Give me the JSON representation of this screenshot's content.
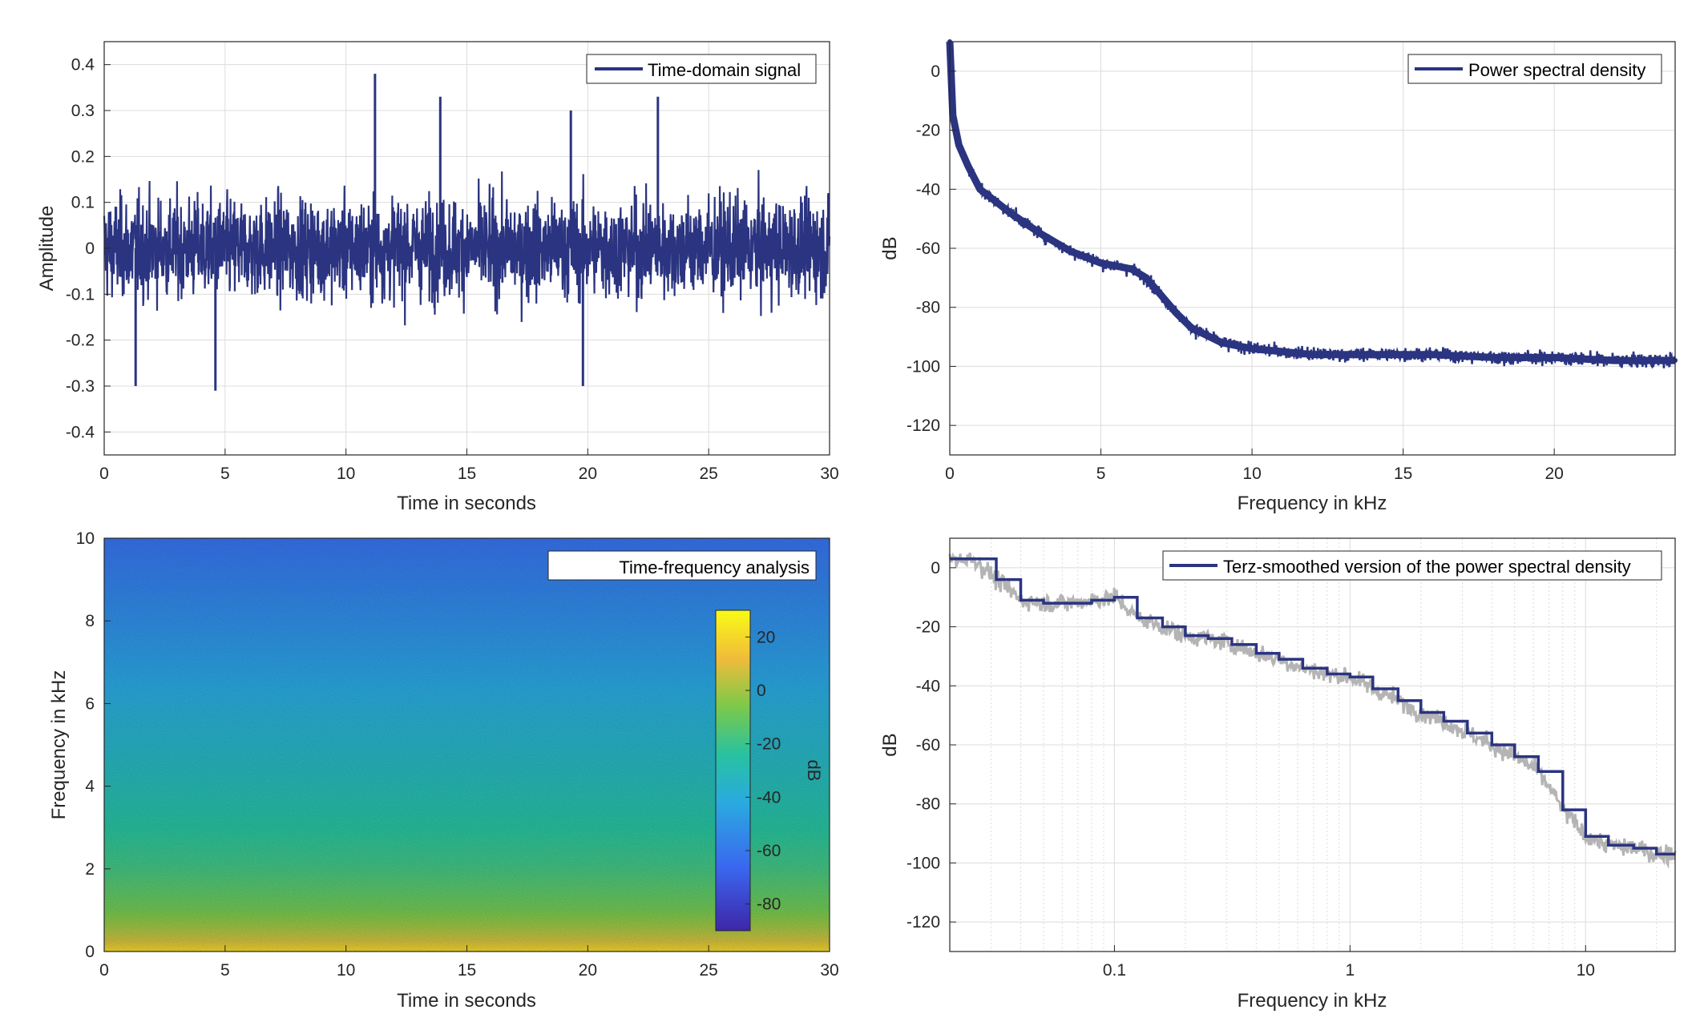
{
  "colors": {
    "series": "#2b3480",
    "grid": "#dcdcdc",
    "axis": "#262626",
    "raw": "#b4b4b4"
  },
  "chart_data": [
    {
      "type": "line",
      "legend": "Time-domain signal",
      "legend_position": "top-right",
      "xlabel": "Time in seconds",
      "ylabel": "Amplitude",
      "xlim": [
        0,
        30
      ],
      "ylim": [
        -0.45,
        0.45
      ],
      "xticks": [
        0,
        5,
        10,
        15,
        20,
        25,
        30
      ],
      "xtick_labels": [
        "0",
        "5",
        "10",
        "15",
        "20",
        "25",
        "30"
      ],
      "yticks": [
        -0.4,
        -0.3,
        -0.2,
        -0.1,
        0,
        0.1,
        0.2,
        0.3,
        0.4
      ],
      "ytick_labels": [
        "-0.4",
        "-0.3",
        "-0.2",
        "-0.1",
        "0",
        "0.1",
        "0.2",
        "0.3",
        "0.4"
      ],
      "grid": true,
      "series": [
        {
          "envelope_typical": [
            -0.12,
            0.12
          ],
          "peaks": [
            [
              11.2,
              0.38
            ],
            [
              4.6,
              -0.31
            ],
            [
              1.3,
              -0.3
            ],
            [
              19.8,
              -0.3
            ],
            [
              13.9,
              0.33
            ],
            [
              22.9,
              0.33
            ],
            [
              19.3,
              0.3
            ]
          ]
        }
      ]
    },
    {
      "type": "line",
      "legend": "Power spectral density",
      "legend_position": "top-right",
      "xlabel": "Frequency in kHz",
      "ylabel": "dB",
      "xlim": [
        0,
        24
      ],
      "ylim": [
        -130,
        10
      ],
      "xticks": [
        0,
        5,
        10,
        15,
        20
      ],
      "xtick_labels": [
        "0",
        "5",
        "10",
        "15",
        "20"
      ],
      "yticks": [
        -120,
        -100,
        -80,
        -60,
        -40,
        -20,
        0
      ],
      "ytick_labels": [
        "-120",
        "-100",
        "-80",
        "-60",
        "-40",
        "-20",
        "0"
      ],
      "grid": true,
      "series": [
        {
          "x": [
            0,
            0.1,
            0.3,
            0.6,
            1,
            1.5,
            2,
            3,
            4,
            5,
            6,
            6.5,
            7,
            7.5,
            8,
            9,
            10,
            11,
            12,
            14,
            16,
            18,
            20,
            22,
            24
          ],
          "y": [
            10,
            -15,
            -25,
            -32,
            -40,
            -44,
            -48,
            -55,
            -61,
            -65,
            -67,
            -70,
            -76,
            -82,
            -87,
            -92,
            -94,
            -95,
            -96,
            -96,
            -96,
            -97,
            -97,
            -98,
            -98
          ]
        }
      ]
    },
    {
      "type": "heatmap",
      "legend": "Time-frequency analysis",
      "legend_position": "top-right",
      "xlabel": "Time in seconds",
      "ylabel": "Frequency in kHz",
      "xlim": [
        0,
        30
      ],
      "ylim": [
        0,
        10
      ],
      "xticks": [
        0,
        5,
        10,
        15,
        20,
        25,
        30
      ],
      "xtick_labels": [
        "0",
        "5",
        "10",
        "15",
        "20",
        "25",
        "30"
      ],
      "yticks": [
        0,
        2,
        4,
        6,
        8,
        10
      ],
      "ytick_labels": [
        "0",
        "2",
        "4",
        "6",
        "8",
        "10"
      ],
      "colorbar": {
        "label": "dB",
        "range": [
          -90,
          30
        ],
        "ticks": [
          20,
          0,
          -20,
          -40,
          -60,
          -80
        ],
        "tick_labels": [
          "20",
          "0",
          "-20",
          "-40",
          "-60",
          "-80"
        ]
      },
      "level_vs_frequency_db": {
        "freq_khz": [
          0,
          0.3,
          1,
          2,
          4,
          6,
          8,
          10
        ],
        "db": [
          20,
          5,
          -8,
          -18,
          -30,
          -40,
          -52,
          -62
        ]
      }
    },
    {
      "type": "line",
      "legend": "Terz-smoothed version of the power spectral density",
      "legend_position": "top-right",
      "xlabel": "Frequency in kHz",
      "ylabel": "dB",
      "xscale": "log",
      "xlim": [
        0.02,
        24
      ],
      "ylim": [
        -130,
        10
      ],
      "xticks": [
        0.1,
        1,
        10
      ],
      "xtick_labels": [
        "0.1",
        "1",
        "10"
      ],
      "yticks": [
        -120,
        -100,
        -80,
        -60,
        -40,
        -20,
        0
      ],
      "ytick_labels": [
        "-120",
        "-100",
        "-80",
        "-60",
        "-40",
        "-20",
        "0"
      ],
      "grid": true,
      "series": [
        {
          "x": [
            0.02,
            0.025,
            0.0315,
            0.04,
            0.05,
            0.063,
            0.08,
            0.1,
            0.125,
            0.16,
            0.2,
            0.25,
            0.315,
            0.4,
            0.5,
            0.63,
            0.8,
            1,
            1.25,
            1.6,
            2,
            2.5,
            3.15,
            4,
            5,
            6.3,
            8,
            10,
            12.5,
            16,
            20,
            24
          ],
          "y": [
            3,
            3,
            -4,
            -11,
            -12,
            -12,
            -11,
            -10,
            -17,
            -20,
            -23,
            -24,
            -26,
            -29,
            -31,
            -34,
            -36,
            -37,
            -41,
            -45,
            -49,
            -52,
            -56,
            -60,
            -64,
            -69,
            -82,
            -91,
            -94,
            -95,
            -97,
            -97
          ]
        }
      ]
    }
  ]
}
